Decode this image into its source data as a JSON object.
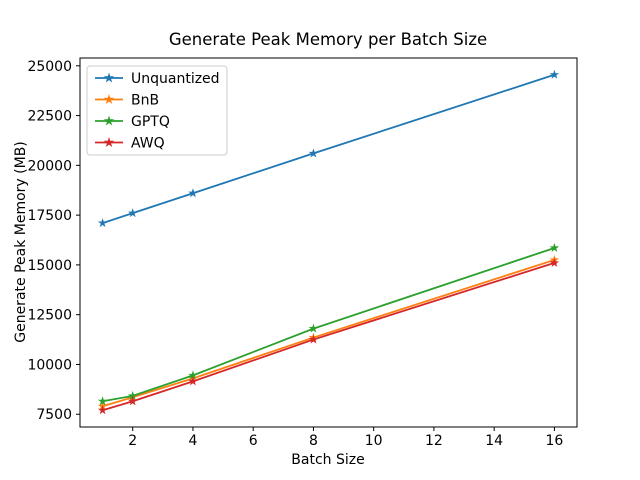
{
  "chart_data": {
    "type": "line",
    "title": "Generate Peak Memory per Batch Size",
    "xlabel": "Batch Size",
    "ylabel": "Generate Peak Memory (MB)",
    "x": [
      1,
      2,
      4,
      8,
      16
    ],
    "series": [
      {
        "name": "Unquantized",
        "color": "#1f77b4",
        "values": [
          17100,
          17600,
          18600,
          20600,
          24550
        ]
      },
      {
        "name": "BnB",
        "color": "#ff7f0e",
        "values": [
          7900,
          8350,
          9300,
          11350,
          15250
        ]
      },
      {
        "name": "GPTQ",
        "color": "#2ca02c",
        "values": [
          8150,
          8420,
          9450,
          11800,
          15850
        ]
      },
      {
        "name": "AWQ",
        "color": "#d62728",
        "values": [
          7700,
          8150,
          9150,
          11250,
          15100
        ]
      }
    ],
    "marker": "star",
    "xlim": [
      0.25,
      16.75
    ],
    "ylim": [
      6858,
      25392
    ],
    "xticks": [
      2,
      4,
      6,
      8,
      10,
      12,
      14,
      16
    ],
    "yticks": [
      7500,
      10000,
      12500,
      15000,
      17500,
      20000,
      22500,
      25000
    ],
    "grid": false,
    "legend_position": "upper left",
    "background_color": "#ffffff",
    "spine_color": "#000000",
    "legend_border_color": "#cccccc"
  }
}
